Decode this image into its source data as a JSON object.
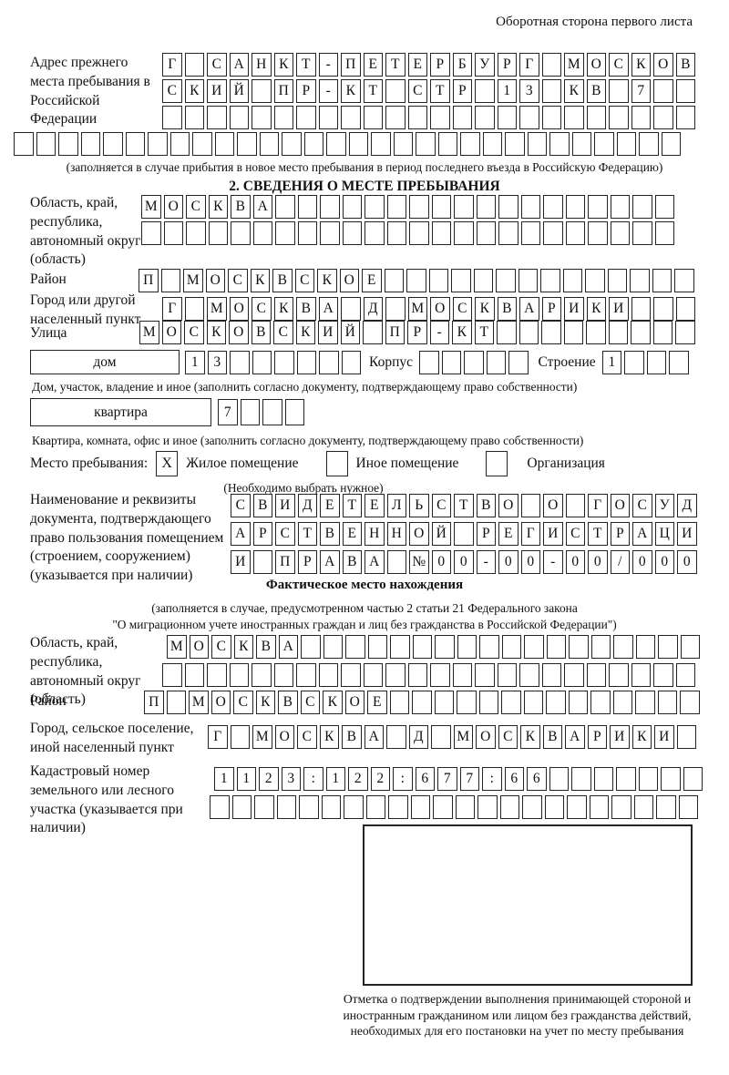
{
  "page": {
    "header_note": "Оборотная сторона первого листа"
  },
  "previous_address": {
    "label": "Адрес прежнего места пребывания в Российской Федерации",
    "row1": [
      "Г",
      "",
      "С",
      "А",
      "Н",
      "К",
      "Т",
      "-",
      "П",
      "Е",
      "Т",
      "Е",
      "Р",
      "Б",
      "У",
      "Р",
      "Г",
      "",
      "М",
      "О",
      "С",
      "К",
      "О",
      "В"
    ],
    "row2": [
      "С",
      "К",
      "И",
      "Й",
      "",
      "П",
      "Р",
      "-",
      "К",
      "Т",
      "",
      "С",
      "Т",
      "Р",
      "",
      "1",
      "3",
      "",
      "К",
      "В",
      "",
      "7",
      "",
      ""
    ],
    "row3": [
      "",
      "",
      "",
      "",
      "",
      "",
      "",
      "",
      "",
      "",
      "",
      "",
      "",
      "",
      "",
      "",
      "",
      "",
      "",
      "",
      "",
      "",
      "",
      ""
    ],
    "row4": [
      "",
      "",
      "",
      "",
      "",
      "",
      "",
      "",
      "",
      "",
      "",
      "",
      "",
      "",
      "",
      "",
      "",
      "",
      "",
      "",
      "",
      "",
      "",
      "",
      "",
      "",
      "",
      "",
      "",
      ""
    ],
    "note": "(заполняется в случае прибытия в новое место пребывания в период последнего въезда в Российскую Федерацию)"
  },
  "section2": {
    "title": "2. СВЕДЕНИЯ О МЕСТЕ ПРЕБЫВАНИЯ",
    "region": {
      "label": "Область, край, республика, автономный округ (область)",
      "row1": [
        "М",
        "О",
        "С",
        "К",
        "В",
        "А",
        "",
        "",
        "",
        "",
        "",
        "",
        "",
        "",
        "",
        "",
        "",
        "",
        "",
        "",
        "",
        "",
        "",
        ""
      ],
      "row2": [
        "",
        "",
        "",
        "",
        "",
        "",
        "",
        "",
        "",
        "",
        "",
        "",
        "",
        "",
        "",
        "",
        "",
        "",
        "",
        "",
        "",
        "",
        "",
        ""
      ]
    },
    "district": {
      "label": "Район",
      "row": [
        "П",
        "",
        "М",
        "О",
        "С",
        "К",
        "В",
        "С",
        "К",
        "О",
        "Е",
        "",
        "",
        "",
        "",
        "",
        "",
        "",
        "",
        "",
        "",
        "",
        "",
        "",
        ""
      ]
    },
    "city": {
      "label": "Город или другой населенный пункт",
      "row": [
        "Г",
        "",
        "М",
        "О",
        "С",
        "К",
        "В",
        "А",
        "",
        "Д",
        "",
        "М",
        "О",
        "С",
        "К",
        "В",
        "А",
        "Р",
        "И",
        "К",
        "И",
        "",
        "",
        ""
      ]
    },
    "street": {
      "label": "Улица",
      "row": [
        "М",
        "О",
        "С",
        "К",
        "О",
        "В",
        "С",
        "К",
        "И",
        "Й",
        "",
        "П",
        "Р",
        "-",
        "К",
        "Т",
        "",
        "",
        "",
        "",
        "",
        "",
        "",
        "",
        ""
      ]
    },
    "house": {
      "box_label": "дом",
      "row": [
        "1",
        "3",
        "",
        "",
        "",
        "",
        "",
        ""
      ],
      "korpus_label": "Корпус",
      "korpus_row": [
        "",
        "",
        "",
        "",
        ""
      ],
      "stroenie_label": "Строение",
      "stroenie_row": [
        "1",
        "",
        "",
        ""
      ]
    },
    "house_note": "Дом, участок, владение и иное (заполнить согласно документу, подтверждающему право собственности)",
    "apartment": {
      "box_label": "квартира",
      "row": [
        "7",
        "",
        "",
        ""
      ]
    },
    "apartment_note": "Квартира, комната, офис и иное (заполнить согласно документу, подтверждающему право собственности)",
    "stay_place": {
      "label": "Место пребывания:",
      "options": [
        {
          "label": "Жилое помещение",
          "mark": "X"
        },
        {
          "label": "Иное помещение",
          "mark": ""
        },
        {
          "label": "Организация",
          "mark": ""
        }
      ],
      "note": "(Необходимо выбрать нужное)"
    },
    "document": {
      "label": "Наименование и реквизиты документа, подтверждающего право пользования помещением (строением, сооружением) (указывается при наличии)",
      "row1": [
        "С",
        "В",
        "И",
        "Д",
        "Е",
        "Т",
        "Е",
        "Л",
        "Ь",
        "С",
        "Т",
        "В",
        "О",
        "",
        "О",
        "",
        "Г",
        "О",
        "С",
        "У",
        "Д"
      ],
      "row2": [
        "А",
        "Р",
        "С",
        "Т",
        "В",
        "Е",
        "Н",
        "Н",
        "О",
        "Й",
        "",
        "Р",
        "Е",
        "Г",
        "И",
        "С",
        "Т",
        "Р",
        "А",
        "Ц",
        "И"
      ],
      "row3": [
        "И",
        "",
        "П",
        "Р",
        "А",
        "В",
        "А",
        "",
        "№",
        "0",
        "0",
        "-",
        "0",
        "0",
        "-",
        "0",
        "0",
        "/",
        "0",
        "0",
        "0"
      ]
    }
  },
  "actual_place": {
    "title": "Фактическое место нахождения",
    "note_line1": "(заполняется в случае, предусмотренном частью 2 статьи 21 Федерального закона",
    "note_line2": "\"О миграционном учете иностранных граждан и лиц без гражданства в Российской Федерации\")",
    "region": {
      "label": "Область, край, республика, автономный округ (область)",
      "row1": [
        "М",
        "О",
        "С",
        "К",
        "В",
        "А",
        "",
        "",
        "",
        "",
        "",
        "",
        "",
        "",
        "",
        "",
        "",
        "",
        "",
        "",
        "",
        "",
        "",
        ""
      ],
      "row2": [
        "",
        "",
        "",
        "",
        "",
        "",
        "",
        "",
        "",
        "",
        "",
        "",
        "",
        "",
        "",
        "",
        "",
        "",
        "",
        "",
        "",
        "",
        "",
        ""
      ]
    },
    "district": {
      "label": "Район",
      "row": [
        "П",
        "",
        "М",
        "О",
        "С",
        "К",
        "В",
        "С",
        "К",
        "О",
        "Е",
        "",
        "",
        "",
        "",
        "",
        "",
        "",
        "",
        "",
        "",
        "",
        "",
        "",
        ""
      ]
    },
    "city": {
      "label": "Город, сельское поселение, иной населенный пункт",
      "row": [
        "Г",
        "",
        "М",
        "О",
        "С",
        "К",
        "В",
        "А",
        "",
        "Д",
        "",
        "М",
        "О",
        "С",
        "К",
        "В",
        "А",
        "Р",
        "И",
        "К",
        "И",
        ""
      ]
    },
    "cadastral": {
      "label": "Кадастровый номер земельного или лесного участка (указывается при наличии)",
      "row1": [
        "1",
        "1",
        "2",
        "3",
        ":",
        "1",
        "2",
        "2",
        ":",
        "6",
        "7",
        "7",
        ":",
        "6",
        "6",
        "",
        "",
        "",
        "",
        "",
        "",
        ""
      ],
      "row2": [
        "",
        "",
        "",
        "",
        "",
        "",
        "",
        "",
        "",
        "",
        "",
        "",
        "",
        "",
        "",
        "",
        "",
        "",
        "",
        "",
        "",
        ""
      ]
    },
    "stamp_note": "Отметка о подтверждении выполнения принимающей стороной и иностранным гражданином или лицом без гражданства действий, необходимых для его постановки на учет по месту пребывания"
  }
}
